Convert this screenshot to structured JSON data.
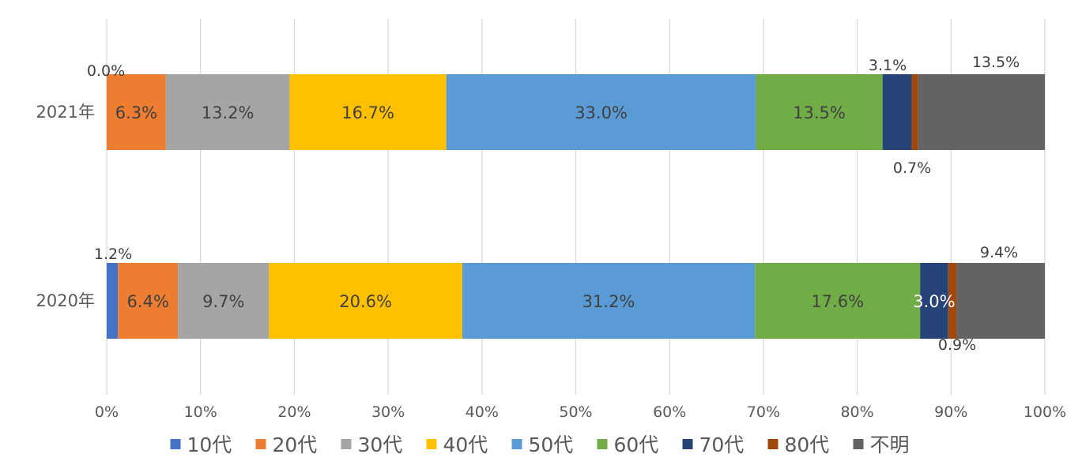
{
  "chart_data": {
    "type": "bar",
    "orientation": "horizontal",
    "stacked": "percent",
    "categories": [
      "2021年",
      "2020年"
    ],
    "x_ticks": [
      "0%",
      "10%",
      "20%",
      "30%",
      "40%",
      "50%",
      "60%",
      "70%",
      "80%",
      "90%",
      "100%"
    ],
    "xlim": [
      0,
      100
    ],
    "grid": true,
    "legend_position": "bottom",
    "series": [
      {
        "name": "10代",
        "color": "#4472c4",
        "values": [
          0.0,
          1.2
        ],
        "labels": [
          "0.0%",
          "1.2%"
        ]
      },
      {
        "name": "20代",
        "color": "#ed7d31",
        "values": [
          6.3,
          6.4
        ],
        "labels": [
          "6.3%",
          "6.4%"
        ]
      },
      {
        "name": "30代",
        "color": "#a5a5a5",
        "values": [
          13.2,
          9.7
        ],
        "labels": [
          "13.2%",
          "9.7%"
        ]
      },
      {
        "name": "40代",
        "color": "#ffc000",
        "values": [
          16.7,
          20.6
        ],
        "labels": [
          "16.7%",
          "20.6%"
        ]
      },
      {
        "name": "50代",
        "color": "#5b9bd5",
        "values": [
          33.0,
          31.2
        ],
        "labels": [
          "33.0%",
          "31.2%"
        ]
      },
      {
        "name": "60代",
        "color": "#70ad47",
        "values": [
          13.5,
          17.6
        ],
        "labels": [
          "13.5%",
          "17.6%"
        ]
      },
      {
        "name": "70代",
        "color": "#264478",
        "values": [
          3.1,
          3.0
        ],
        "labels": [
          "3.1%",
          "3.0%"
        ]
      },
      {
        "name": "80代",
        "color": "#9e480e",
        "values": [
          0.7,
          0.9
        ],
        "labels": [
          "0.7%",
          "0.9%"
        ]
      },
      {
        "name": "不明",
        "color": "#636363",
        "values": [
          13.5,
          9.4
        ],
        "labels": [
          "13.5%",
          "9.4%"
        ]
      }
    ]
  }
}
